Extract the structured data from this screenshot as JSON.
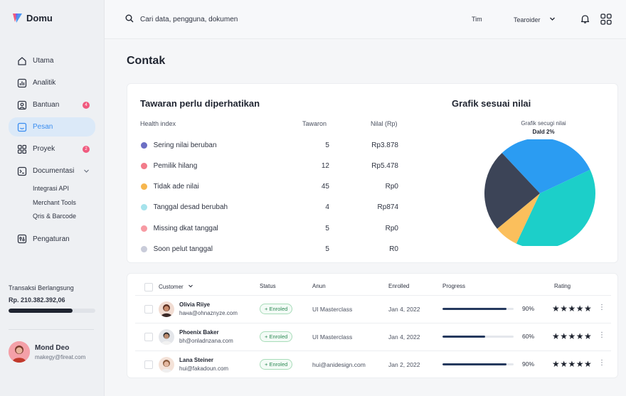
{
  "app": {
    "name": "Domu"
  },
  "sidebar": {
    "items": [
      {
        "label": "Utama"
      },
      {
        "label": "Analitik"
      },
      {
        "label": "Bantuan",
        "badge": "4"
      },
      {
        "label": "Pesan"
      },
      {
        "label": "Proyek",
        "badge": "2"
      },
      {
        "label": "Documentasi"
      }
    ],
    "sub_items": [
      "Integrasi API",
      "Merchant Tools",
      "Qris & Barcode"
    ],
    "settings_label": "Pengaturan",
    "transaction": {
      "label": "Transaksi Berlangsung",
      "amount": "Rp. 210.382.392,06",
      "progress": 0.74
    },
    "user": {
      "name": "Mond Deo",
      "email": "makegy@fireat.com"
    }
  },
  "topbar": {
    "search_placeholder": "Cari data, pengguna, dokumen",
    "team_label": "Tim",
    "account_label": "Tearoider"
  },
  "page": {
    "title": "Contak"
  },
  "offers": {
    "title": "Tawaran perlu diperhatikan",
    "columns": {
      "name": "Health index",
      "count": "Tawaron",
      "value": "Nilal (Rp)"
    },
    "rows": [
      {
        "label": "Sering nilai beruban",
        "count": "5",
        "value": "Rp3.878",
        "color": "#6c6fc4"
      },
      {
        "label": "Pemilik hilang",
        "count": "12",
        "value": "Rp5.478",
        "color": "#f27b8a"
      },
      {
        "label": "Tidak ade nilai",
        "count": "45",
        "value": "Rp0",
        "color": "#f6b64e"
      },
      {
        "label": "Tanggal desad berubah",
        "count": "4",
        "value": "Rp874",
        "color": "#a6e3ec"
      },
      {
        "label": "Missing dkat tanggal",
        "count": "5",
        "value": "Rp0",
        "color": "#f79aa3"
      },
      {
        "label": "Soon pelut tanggal",
        "count": "5",
        "value": "R0",
        "color": "#c9ccda"
      }
    ]
  },
  "chart": {
    "title": "Grafik sesuai nilai",
    "subtitle": "Grafik secugi nilai",
    "annotation": "Dald 2%"
  },
  "chart_data": {
    "type": "pie",
    "title": "Grafik sesuai nilai",
    "subtitle": "Grafik secugi nilai",
    "annotations": [
      "Dald 2%"
    ],
    "slices": [
      {
        "value": 30,
        "color": "#2b9cf2"
      },
      {
        "value": 39,
        "color": "#1ccfc9"
      },
      {
        "value": 7,
        "color": "#fbbf5c"
      },
      {
        "value": 24,
        "color": "#3c4457"
      }
    ]
  },
  "table": {
    "headers": {
      "customer": "Customer",
      "status": "Status",
      "anun": "Anun",
      "enrolled": "Enrolled",
      "progress": "Progress",
      "rating": "Rating"
    },
    "rows": [
      {
        "name": "Olivia Riiye",
        "email": "hана@ohnaznyze.com",
        "status": "+ Enroled",
        "anun": "UI Masterclass",
        "date": "Jan 4, 2022",
        "progress": 0.9,
        "pct": "90%",
        "stars": "★★★★★",
        "avatar_color": "#c98b6b"
      },
      {
        "name": "Phoenix Baker",
        "email": "bh@onladnzana.com",
        "status": "+ Enroled",
        "anun": "UI Masterclass",
        "date": "Jan 4, 2022",
        "progress": 0.6,
        "pct": "60%",
        "stars": "★★★★★",
        "avatar_color": "#8a6e5a"
      },
      {
        "name": "Lana Steiner",
        "email": "hui@fakadoun.com",
        "status": "+ Enroled",
        "anun": "hui@anidesign.com",
        "date": "Jan 2, 2022",
        "progress": 0.9,
        "pct": "90%",
        "stars": "★★★★★",
        "avatar_color": "#d9a48c"
      }
    ]
  }
}
